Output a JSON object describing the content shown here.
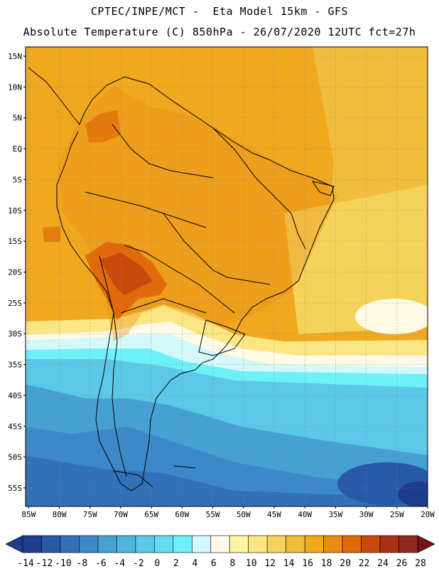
{
  "header": {
    "line1": "CPTEC/INPE/MCT -  Eta Model 15km - GFS",
    "line2": "Absolute Temperature (C) 850hPa - 26/07/2020 12UTC fct=27h"
  },
  "map_axes": {
    "lat_labels": [
      "15N",
      "10N",
      "5N",
      "EQ",
      "5S",
      "10S",
      "15S",
      "20S",
      "25S",
      "30S",
      "35S",
      "40S",
      "45S",
      "50S",
      "55S"
    ],
    "lat_values": [
      15,
      10,
      5,
      0,
      -5,
      -10,
      -15,
      -20,
      -25,
      -30,
      -35,
      -40,
      -45,
      -50,
      -55
    ],
    "lon_labels": [
      "85W",
      "80W",
      "75W",
      "70W",
      "65W",
      "60W",
      "55W",
      "50W",
      "45W",
      "40W",
      "35W",
      "30W",
      "25W",
      "20W"
    ],
    "lon_values": [
      -85,
      -80,
      -75,
      -70,
      -65,
      -60,
      -55,
      -50,
      -45,
      -40,
      -35,
      -30,
      -25,
      -20
    ],
    "lon_range": [
      -85.5,
      -20
    ],
    "lat_range": [
      -58,
      16.5
    ],
    "grid": "dotted"
  },
  "colorbar": {
    "labels": [
      "-14",
      "-12",
      "-10",
      "-8",
      "-6",
      "-4",
      "-2",
      "0",
      "2",
      "4",
      "6",
      "8",
      "10",
      "12",
      "14",
      "16",
      "18",
      "20",
      "22",
      "24",
      "26",
      "28"
    ],
    "colors": [
      "#1e3c8c",
      "#1e3c8c",
      "#2858a8",
      "#3270b8",
      "#3c88c8",
      "#46a0d2",
      "#50b4dc",
      "#5ac8e6",
      "#64dcf0",
      "#6ef0f8",
      "#d2f8fa",
      "#fffae6",
      "#fff5a0",
      "#fae682",
      "#f5d25a",
      "#f0be3c",
      "#f0a81e",
      "#e88c14",
      "#e06a0a",
      "#c84a0a",
      "#aa3214",
      "#8c281e",
      "#6e1414"
    ]
  },
  "regions": {
    "ocean_warm": "#f0a81e",
    "land_warm": "#e88c14",
    "hot_core": "#c84a0a",
    "mild": "#fae682",
    "cool_light": "#d2f8fa",
    "cool": "#5ac8e6",
    "cold": "#3270b8",
    "very_cold": "#1e3c8c",
    "outline": "#000000"
  }
}
